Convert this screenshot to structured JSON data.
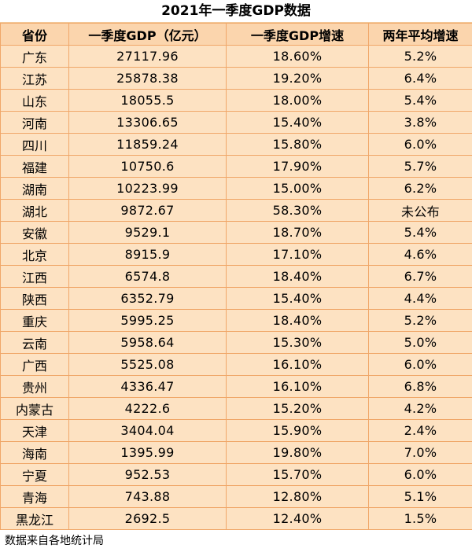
{
  "chart_data": {
    "type": "table",
    "title": "2021年一季度GDP数据",
    "columns": [
      "省份",
      "一季度GDP（亿元）",
      "一季度GDP增速",
      "两年平均增速"
    ],
    "rows": [
      [
        "广东",
        "27117.96",
        "18.60%",
        "5.2%"
      ],
      [
        "江苏",
        "25878.38",
        "19.20%",
        "6.4%"
      ],
      [
        "山东",
        "18055.5",
        "18.00%",
        "5.4%"
      ],
      [
        "河南",
        "13306.65",
        "15.40%",
        "3.8%"
      ],
      [
        "四川",
        "11859.24",
        "15.80%",
        "6.0%"
      ],
      [
        "福建",
        "10750.6",
        "17.90%",
        "5.7%"
      ],
      [
        "湖南",
        "10223.99",
        "15.00%",
        "6.2%"
      ],
      [
        "湖北",
        "9872.67",
        "58.30%",
        "未公布"
      ],
      [
        "安徽",
        "9529.1",
        "18.70%",
        "5.4%"
      ],
      [
        "北京",
        "8915.9",
        "17.10%",
        "4.6%"
      ],
      [
        "江西",
        "6574.8",
        "18.40%",
        "6.7%"
      ],
      [
        "陕西",
        "6352.79",
        "15.40%",
        "4.4%"
      ],
      [
        "重庆",
        "5995.25",
        "18.40%",
        "5.2%"
      ],
      [
        "云南",
        "5958.64",
        "15.30%",
        "5.0%"
      ],
      [
        "广西",
        "5525.08",
        "16.10%",
        "6.0%"
      ],
      [
        "贵州",
        "4336.47",
        "16.10%",
        "6.8%"
      ],
      [
        "内蒙古",
        "4222.6",
        "15.20%",
        "4.2%"
      ],
      [
        "天津",
        "3404.04",
        "15.90%",
        "2.4%"
      ],
      [
        "海南",
        "1395.99",
        "19.80%",
        "7.0%"
      ],
      [
        "宁夏",
        "952.53",
        "15.70%",
        "6.0%"
      ],
      [
        "青海",
        "743.88",
        "12.80%",
        "5.1%"
      ],
      [
        "黑龙江",
        "2692.5",
        "12.40%",
        "1.5%"
      ]
    ],
    "source_note": "数据来自各地统计局"
  },
  "colors": {
    "cell_background": "#fde2c2",
    "header_background": "#fbd5ad",
    "grid_line": "#f0a769"
  }
}
